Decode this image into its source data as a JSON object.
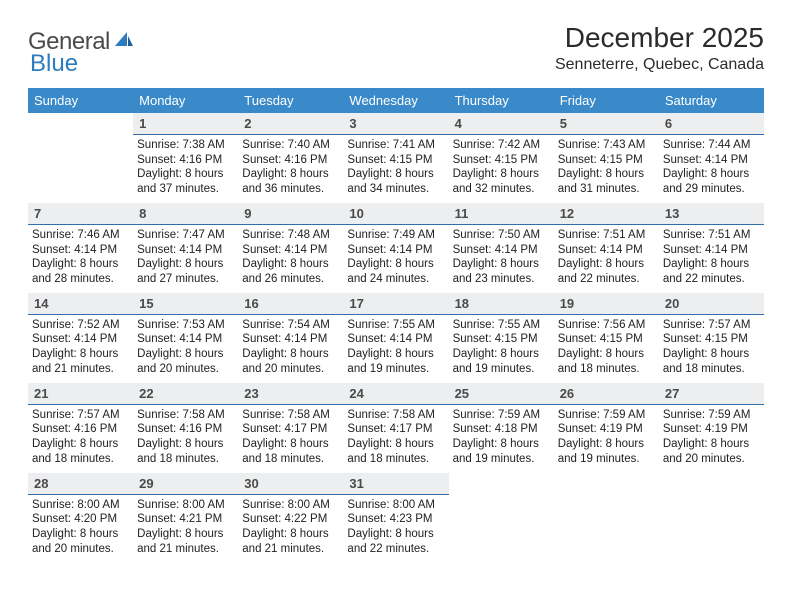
{
  "brand": {
    "word1": "General",
    "word2": "Blue"
  },
  "title": "December 2025",
  "location": "Senneterre, Quebec, Canada",
  "colors": {
    "header_bg": "#3a8ac9",
    "daynum_bg": "#eceeef",
    "rule": "#2f6ea6",
    "text": "#212121",
    "logo_gray": "#4a4a4a",
    "logo_blue": "#2d7cc0"
  },
  "dayHeaders": [
    "Sunday",
    "Monday",
    "Tuesday",
    "Wednesday",
    "Thursday",
    "Friday",
    "Saturday"
  ],
  "weeks": [
    [
      {
        "n": "",
        "lines": []
      },
      {
        "n": "1",
        "lines": [
          "Sunrise: 7:38 AM",
          "Sunset: 4:16 PM",
          "Daylight: 8 hours",
          "and 37 minutes."
        ]
      },
      {
        "n": "2",
        "lines": [
          "Sunrise: 7:40 AM",
          "Sunset: 4:16 PM",
          "Daylight: 8 hours",
          "and 36 minutes."
        ]
      },
      {
        "n": "3",
        "lines": [
          "Sunrise: 7:41 AM",
          "Sunset: 4:15 PM",
          "Daylight: 8 hours",
          "and 34 minutes."
        ]
      },
      {
        "n": "4",
        "lines": [
          "Sunrise: 7:42 AM",
          "Sunset: 4:15 PM",
          "Daylight: 8 hours",
          "and 32 minutes."
        ]
      },
      {
        "n": "5",
        "lines": [
          "Sunrise: 7:43 AM",
          "Sunset: 4:15 PM",
          "Daylight: 8 hours",
          "and 31 minutes."
        ]
      },
      {
        "n": "6",
        "lines": [
          "Sunrise: 7:44 AM",
          "Sunset: 4:14 PM",
          "Daylight: 8 hours",
          "and 29 minutes."
        ]
      }
    ],
    [
      {
        "n": "7",
        "lines": [
          "Sunrise: 7:46 AM",
          "Sunset: 4:14 PM",
          "Daylight: 8 hours",
          "and 28 minutes."
        ]
      },
      {
        "n": "8",
        "lines": [
          "Sunrise: 7:47 AM",
          "Sunset: 4:14 PM",
          "Daylight: 8 hours",
          "and 27 minutes."
        ]
      },
      {
        "n": "9",
        "lines": [
          "Sunrise: 7:48 AM",
          "Sunset: 4:14 PM",
          "Daylight: 8 hours",
          "and 26 minutes."
        ]
      },
      {
        "n": "10",
        "lines": [
          "Sunrise: 7:49 AM",
          "Sunset: 4:14 PM",
          "Daylight: 8 hours",
          "and 24 minutes."
        ]
      },
      {
        "n": "11",
        "lines": [
          "Sunrise: 7:50 AM",
          "Sunset: 4:14 PM",
          "Daylight: 8 hours",
          "and 23 minutes."
        ]
      },
      {
        "n": "12",
        "lines": [
          "Sunrise: 7:51 AM",
          "Sunset: 4:14 PM",
          "Daylight: 8 hours",
          "and 22 minutes."
        ]
      },
      {
        "n": "13",
        "lines": [
          "Sunrise: 7:51 AM",
          "Sunset: 4:14 PM",
          "Daylight: 8 hours",
          "and 22 minutes."
        ]
      }
    ],
    [
      {
        "n": "14",
        "lines": [
          "Sunrise: 7:52 AM",
          "Sunset: 4:14 PM",
          "Daylight: 8 hours",
          "and 21 minutes."
        ]
      },
      {
        "n": "15",
        "lines": [
          "Sunrise: 7:53 AM",
          "Sunset: 4:14 PM",
          "Daylight: 8 hours",
          "and 20 minutes."
        ]
      },
      {
        "n": "16",
        "lines": [
          "Sunrise: 7:54 AM",
          "Sunset: 4:14 PM",
          "Daylight: 8 hours",
          "and 20 minutes."
        ]
      },
      {
        "n": "17",
        "lines": [
          "Sunrise: 7:55 AM",
          "Sunset: 4:14 PM",
          "Daylight: 8 hours",
          "and 19 minutes."
        ]
      },
      {
        "n": "18",
        "lines": [
          "Sunrise: 7:55 AM",
          "Sunset: 4:15 PM",
          "Daylight: 8 hours",
          "and 19 minutes."
        ]
      },
      {
        "n": "19",
        "lines": [
          "Sunrise: 7:56 AM",
          "Sunset: 4:15 PM",
          "Daylight: 8 hours",
          "and 18 minutes."
        ]
      },
      {
        "n": "20",
        "lines": [
          "Sunrise: 7:57 AM",
          "Sunset: 4:15 PM",
          "Daylight: 8 hours",
          "and 18 minutes."
        ]
      }
    ],
    [
      {
        "n": "21",
        "lines": [
          "Sunrise: 7:57 AM",
          "Sunset: 4:16 PM",
          "Daylight: 8 hours",
          "and 18 minutes."
        ]
      },
      {
        "n": "22",
        "lines": [
          "Sunrise: 7:58 AM",
          "Sunset: 4:16 PM",
          "Daylight: 8 hours",
          "and 18 minutes."
        ]
      },
      {
        "n": "23",
        "lines": [
          "Sunrise: 7:58 AM",
          "Sunset: 4:17 PM",
          "Daylight: 8 hours",
          "and 18 minutes."
        ]
      },
      {
        "n": "24",
        "lines": [
          "Sunrise: 7:58 AM",
          "Sunset: 4:17 PM",
          "Daylight: 8 hours",
          "and 18 minutes."
        ]
      },
      {
        "n": "25",
        "lines": [
          "Sunrise: 7:59 AM",
          "Sunset: 4:18 PM",
          "Daylight: 8 hours",
          "and 19 minutes."
        ]
      },
      {
        "n": "26",
        "lines": [
          "Sunrise: 7:59 AM",
          "Sunset: 4:19 PM",
          "Daylight: 8 hours",
          "and 19 minutes."
        ]
      },
      {
        "n": "27",
        "lines": [
          "Sunrise: 7:59 AM",
          "Sunset: 4:19 PM",
          "Daylight: 8 hours",
          "and 20 minutes."
        ]
      }
    ],
    [
      {
        "n": "28",
        "lines": [
          "Sunrise: 8:00 AM",
          "Sunset: 4:20 PM",
          "Daylight: 8 hours",
          "and 20 minutes."
        ]
      },
      {
        "n": "29",
        "lines": [
          "Sunrise: 8:00 AM",
          "Sunset: 4:21 PM",
          "Daylight: 8 hours",
          "and 21 minutes."
        ]
      },
      {
        "n": "30",
        "lines": [
          "Sunrise: 8:00 AM",
          "Sunset: 4:22 PM",
          "Daylight: 8 hours",
          "and 21 minutes."
        ]
      },
      {
        "n": "31",
        "lines": [
          "Sunrise: 8:00 AM",
          "Sunset: 4:23 PM",
          "Daylight: 8 hours",
          "and 22 minutes."
        ]
      },
      {
        "n": "",
        "lines": []
      },
      {
        "n": "",
        "lines": []
      },
      {
        "n": "",
        "lines": []
      }
    ]
  ]
}
